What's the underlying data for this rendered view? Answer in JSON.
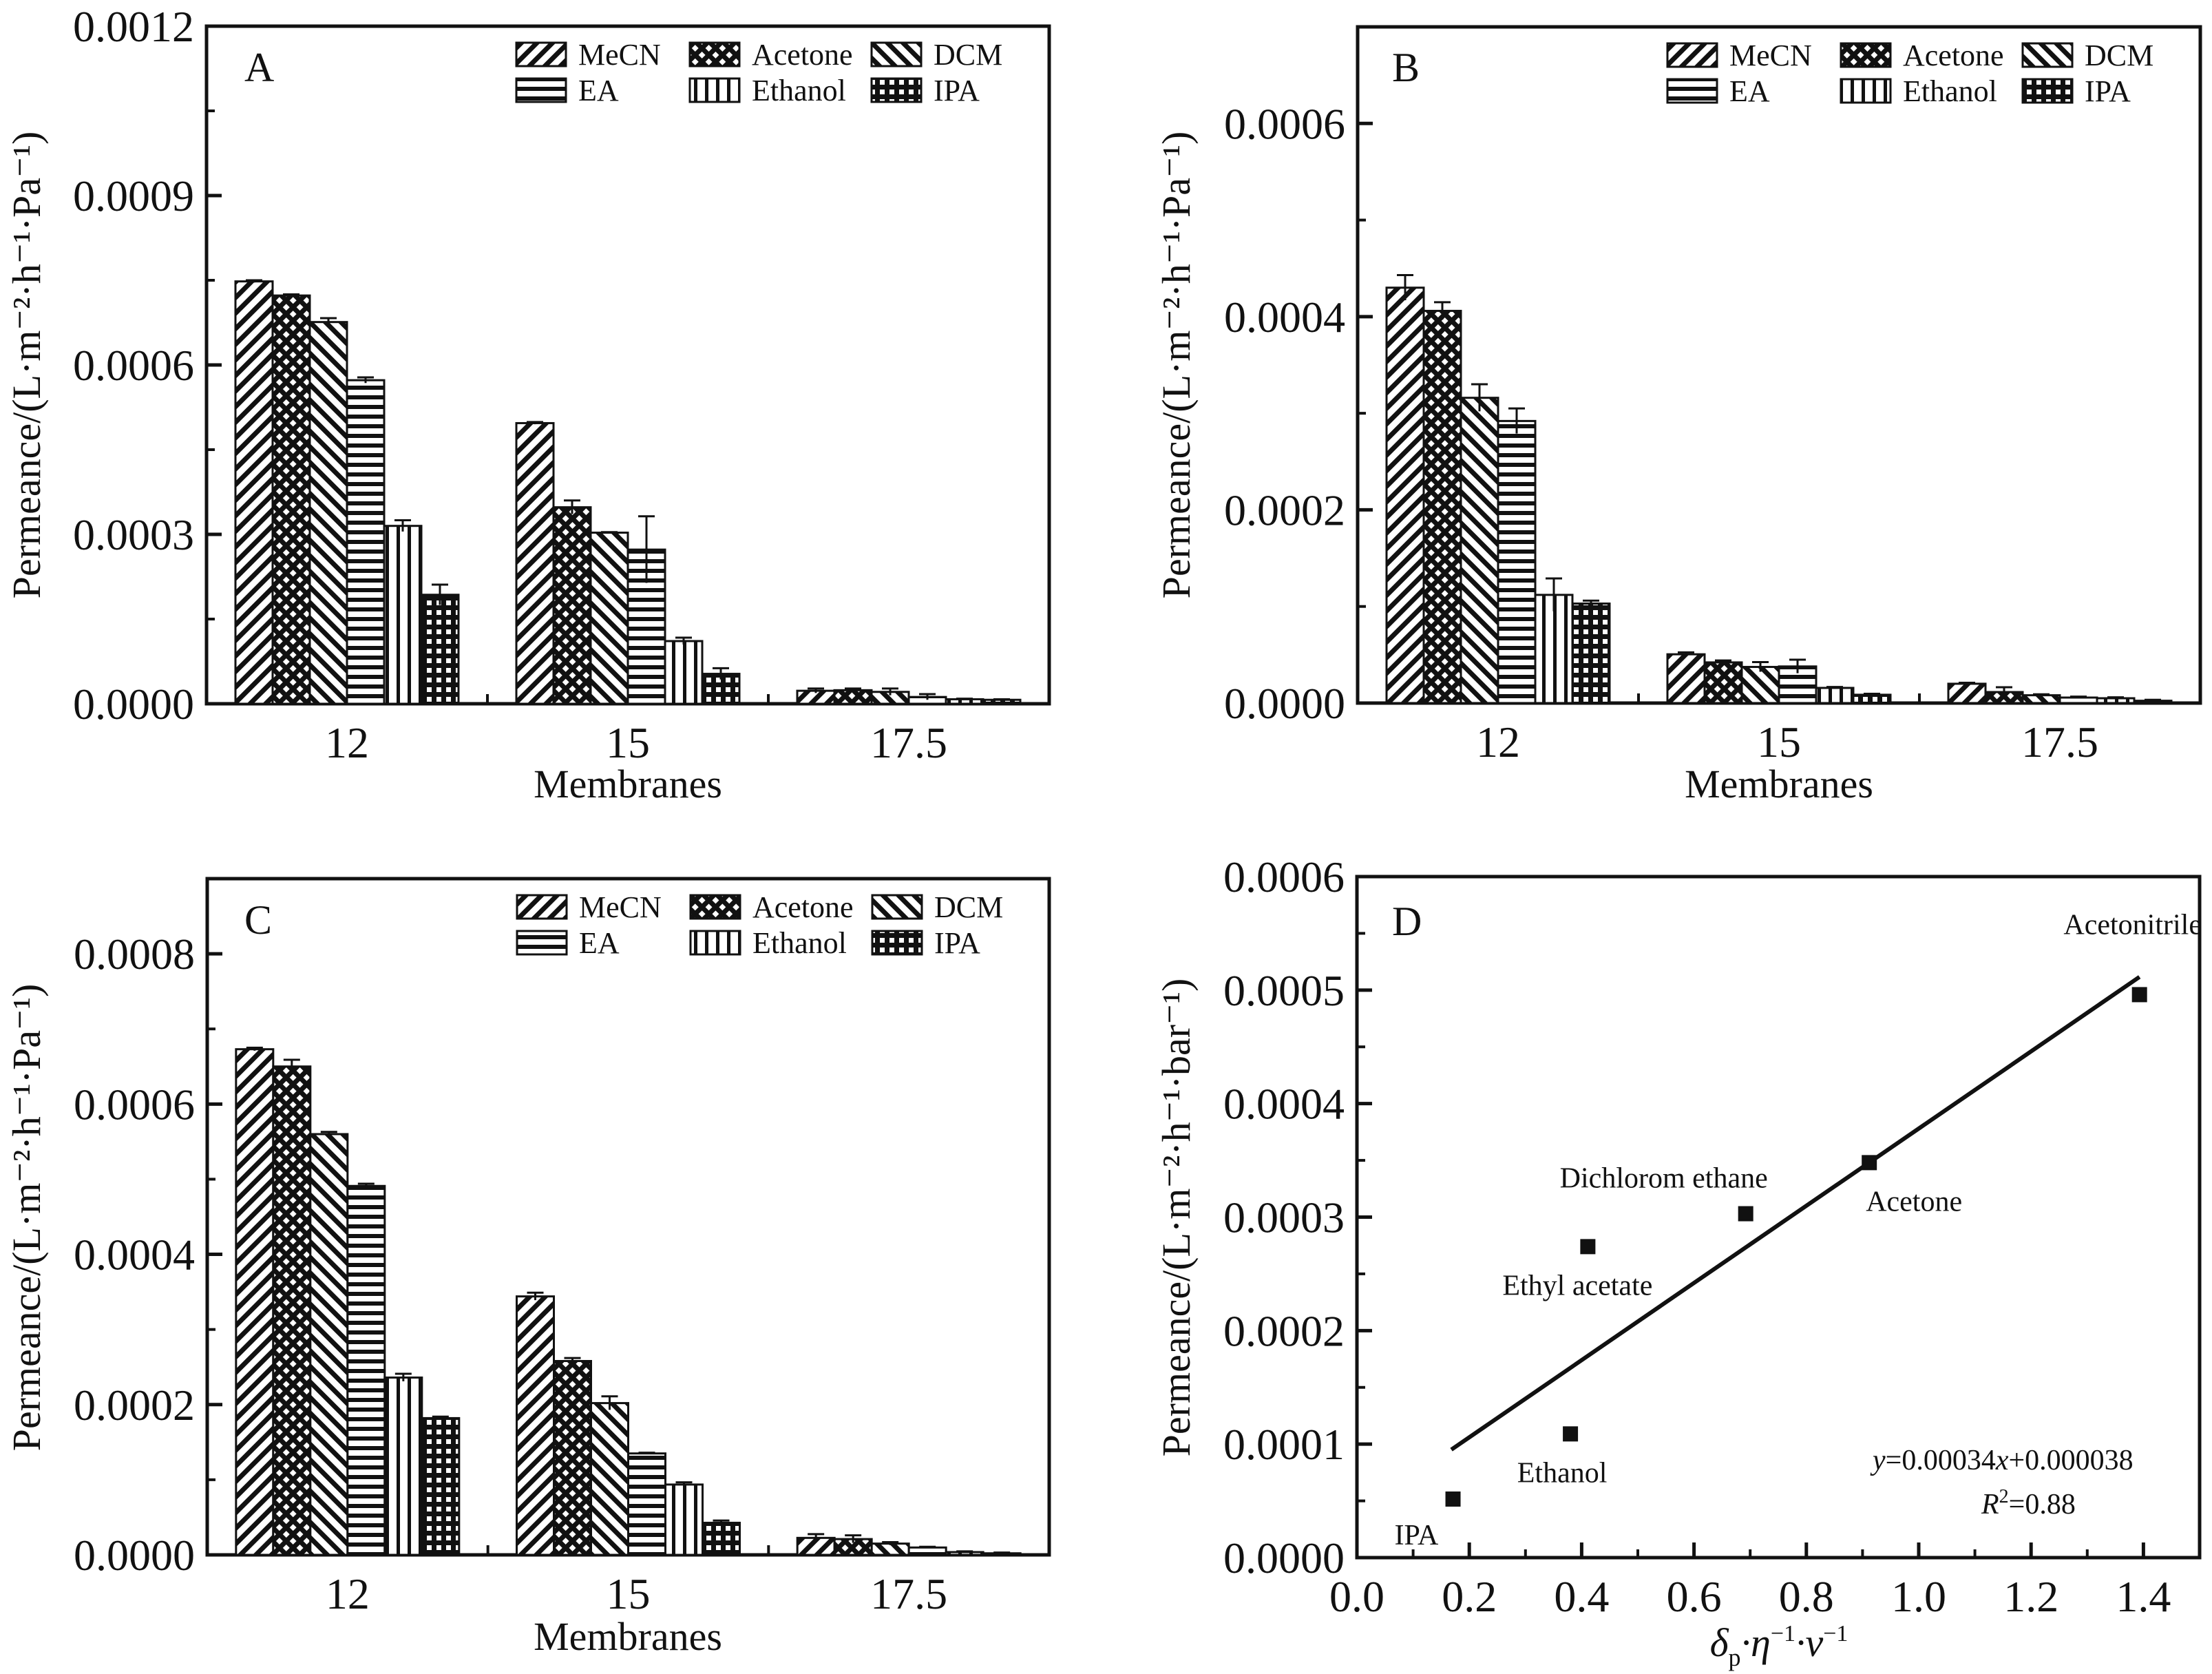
{
  "figure": {
    "background": "#ffffff",
    "ink": "#111111"
  },
  "chart_data": [
    {
      "id": "A",
      "type": "bar",
      "panel_label": "A",
      "title": "",
      "xlabel": "Membranes",
      "ylabel": "Permeance/(L·m⁻²·h⁻¹·Pa⁻¹)",
      "categories": [
        "12",
        "15",
        "17.5"
      ],
      "ylim": [
        0,
        0.0012
      ],
      "yticks": [
        "0.0000",
        "0.0003",
        "0.0006",
        "0.0009",
        "0.0012"
      ],
      "ytick_values": [
        0,
        0.0003,
        0.0006,
        0.0009,
        0.0012
      ],
      "minor_step": 0.00015,
      "legend_position": "top-right",
      "series": [
        {
          "name": "MeCN",
          "pattern": "diag-right",
          "values": [
            0.000748,
            0.000497,
            2.3e-05
          ],
          "errors": [
            2e-06,
            2e-06,
            4e-06
          ]
        },
        {
          "name": "Acetone",
          "pattern": "crosshatch",
          "values": [
            0.000723,
            0.000348,
            2.4e-05
          ],
          "errors": [
            2e-06,
            1.2e-05,
            3e-06
          ]
        },
        {
          "name": "DCM",
          "pattern": "diag-left",
          "values": [
            0.000676,
            0.000303,
            2.1e-05
          ],
          "errors": [
            7e-06,
            1e-06,
            6e-06
          ]
        },
        {
          "name": "EA",
          "pattern": "horizontal",
          "values": [
            0.000573,
            0.000273,
            1.2e-05
          ],
          "errors": [
            5e-06,
            5.9e-05,
            5e-06
          ]
        },
        {
          "name": "Ethanol",
          "pattern": "vertical",
          "values": [
            0.000315,
            0.000111,
            8e-06
          ],
          "errors": [
            1e-05,
            6e-06,
            1e-06
          ]
        },
        {
          "name": "IPA",
          "pattern": "grid",
          "values": [
            0.000193,
            5.3e-05,
            7e-06
          ],
          "errors": [
            1.8e-05,
            1e-05,
            1e-06
          ]
        }
      ]
    },
    {
      "id": "B",
      "type": "bar",
      "panel_label": "B",
      "title": "",
      "xlabel": "Membranes",
      "ylabel": "Permeance/(L·m⁻²·h⁻¹·Pa⁻¹)",
      "categories": [
        "12",
        "15",
        "17.5"
      ],
      "ylim": [
        0,
        0.0007
      ],
      "yticks": [
        "0.0000",
        "0.0002",
        "0.0004",
        "0.0006"
      ],
      "ytick_values": [
        0,
        0.0002,
        0.0004,
        0.0006
      ],
      "minor_step": 0.0001,
      "legend_position": "top-right",
      "series": [
        {
          "name": "MeCN",
          "pattern": "diag-right",
          "values": [
            0.00043,
            5.05e-05,
            2e-05
          ],
          "errors": [
            1.3e-05,
            2e-06,
            1e-06
          ]
        },
        {
          "name": "Acetone",
          "pattern": "crosshatch",
          "values": [
            0.000406,
            4.21e-05,
            1.14e-05
          ],
          "errors": [
            9e-06,
            2e-06,
            5e-06
          ]
        },
        {
          "name": "DCM",
          "pattern": "diag-left",
          "values": [
            0.000316,
            3.74e-05,
            8.1e-06
          ],
          "errors": [
            1.4e-05,
            5e-06,
            1e-06
          ]
        },
        {
          "name": "EA",
          "pattern": "horizontal",
          "values": [
            0.000292,
            3.79e-05,
            5.7e-06
          ],
          "errors": [
            1.3e-05,
            7e-06,
            1e-06
          ]
        },
        {
          "name": "Ethanol",
          "pattern": "vertical",
          "values": [
            0.000112,
            1.57e-05,
            5e-06
          ],
          "errors": [
            1.7e-05,
            1e-06,
            1e-06
          ]
        },
        {
          "name": "IPA",
          "pattern": "grid",
          "values": [
            0.000103,
            8.6e-06,
            2.4e-06
          ],
          "errors": [
            3e-06,
            1e-06,
            1e-06
          ]
        }
      ]
    },
    {
      "id": "C",
      "type": "bar",
      "panel_label": "C",
      "title": "",
      "xlabel": "Membranes",
      "ylabel": "Permeance/(L·m⁻²·h⁻¹·Pa⁻¹)",
      "categories": [
        "12",
        "15",
        "17.5"
      ],
      "ylim": [
        0,
        0.0009
      ],
      "yticks": [
        "0.0000",
        "0.0002",
        "0.0004",
        "0.0006",
        "0.0008"
      ],
      "ytick_values": [
        0,
        0.0002,
        0.0004,
        0.0006,
        0.0008
      ],
      "minor_step": 0.0001,
      "legend_position": "top-right",
      "series": [
        {
          "name": "MeCN",
          "pattern": "diag-right",
          "values": [
            0.000673,
            0.000344,
            2.26e-05
          ],
          "errors": [
            2e-06,
            5e-06,
            5e-06
          ]
        },
        {
          "name": "Acetone",
          "pattern": "crosshatch",
          "values": [
            0.00065,
            0.000258,
            2.1e-05
          ],
          "errors": [
            9e-06,
            4e-06,
            5e-06
          ]
        },
        {
          "name": "DCM",
          "pattern": "diag-left",
          "values": [
            0.00056,
            0.000202,
            1.5e-05
          ],
          "errors": [
            3e-06,
            9e-06,
            2e-06
          ]
        },
        {
          "name": "EA",
          "pattern": "horizontal",
          "values": [
            0.000491,
            0.000135,
            9.8e-06
          ],
          "errors": [
            3e-06,
            1e-06,
            1e-06
          ]
        },
        {
          "name": "Ethanol",
          "pattern": "vertical",
          "values": [
            0.000236,
            9.36e-05,
            3.7e-06
          ],
          "errors": [
            5e-06,
            3e-06,
            1e-06
          ]
        },
        {
          "name": "IPA",
          "pattern": "grid",
          "values": [
            0.000182,
            4.27e-05,
            2.1e-06
          ],
          "errors": [
            2e-06,
            3e-06,
            1e-06
          ]
        }
      ]
    },
    {
      "id": "D",
      "type": "scatter",
      "panel_label": "D",
      "title": "",
      "xlabel": "δp·η⁻¹·ν⁻¹",
      "xlabel_parts": {
        "delta": "δ",
        "sub": "p",
        "rest1": "·η",
        "sup1": "−1",
        "rest2": "·ν",
        "sup2": "−1"
      },
      "ylabel": "Permeance/(L·m⁻²·h⁻¹·bar⁻¹)",
      "xlim": [
        0,
        1.5
      ],
      "ylim": [
        0,
        0.0006
      ],
      "xticks": [
        "0.0",
        "0.2",
        "0.4",
        "0.6",
        "0.8",
        "1.0",
        "1.2",
        "1.4"
      ],
      "xtick_values": [
        0,
        0.2,
        0.4,
        0.6,
        0.8,
        1.0,
        1.2,
        1.4
      ],
      "yticks": [
        "0.0000",
        "0.0001",
        "0.0002",
        "0.0003",
        "0.0004",
        "0.0005",
        "0.0006"
      ],
      "ytick_values": [
        0,
        0.0001,
        0.0002,
        0.0003,
        0.0004,
        0.0005,
        0.0006
      ],
      "x_minor_step": 0.1,
      "y_minor_step": 5e-05,
      "points": [
        {
          "label": "IPA",
          "x": 0.171,
          "y": 5.16e-05,
          "label_pos": "below-left"
        },
        {
          "label": "Ethanol",
          "x": 0.38,
          "y": 0.000109,
          "label_pos": "below"
        },
        {
          "label": "Ethyl acetate",
          "x": 0.411,
          "y": 0.000274,
          "label_pos": "below"
        },
        {
          "label": "Dichlorom ethane",
          "x": 0.692,
          "y": 0.000303,
          "label_pos": "above-left"
        },
        {
          "label": "Acetone",
          "x": 0.912,
          "y": 0.000348,
          "label_pos": "below-right"
        },
        {
          "label": "Acetonitrile",
          "x": 1.393,
          "y": 0.000496,
          "label_pos": "above"
        }
      ],
      "fit": {
        "slope": 0.00034,
        "intercept": 3.8e-05,
        "x_range": [
          0.168,
          1.393
        ],
        "equation_y": "y",
        "equation_rest": "=0.00034",
        "equation_x": "x",
        "equation_tail": "+0.000038",
        "r2_label": "R",
        "r2_sup": "2",
        "r2_value": "=0.88"
      }
    }
  ]
}
